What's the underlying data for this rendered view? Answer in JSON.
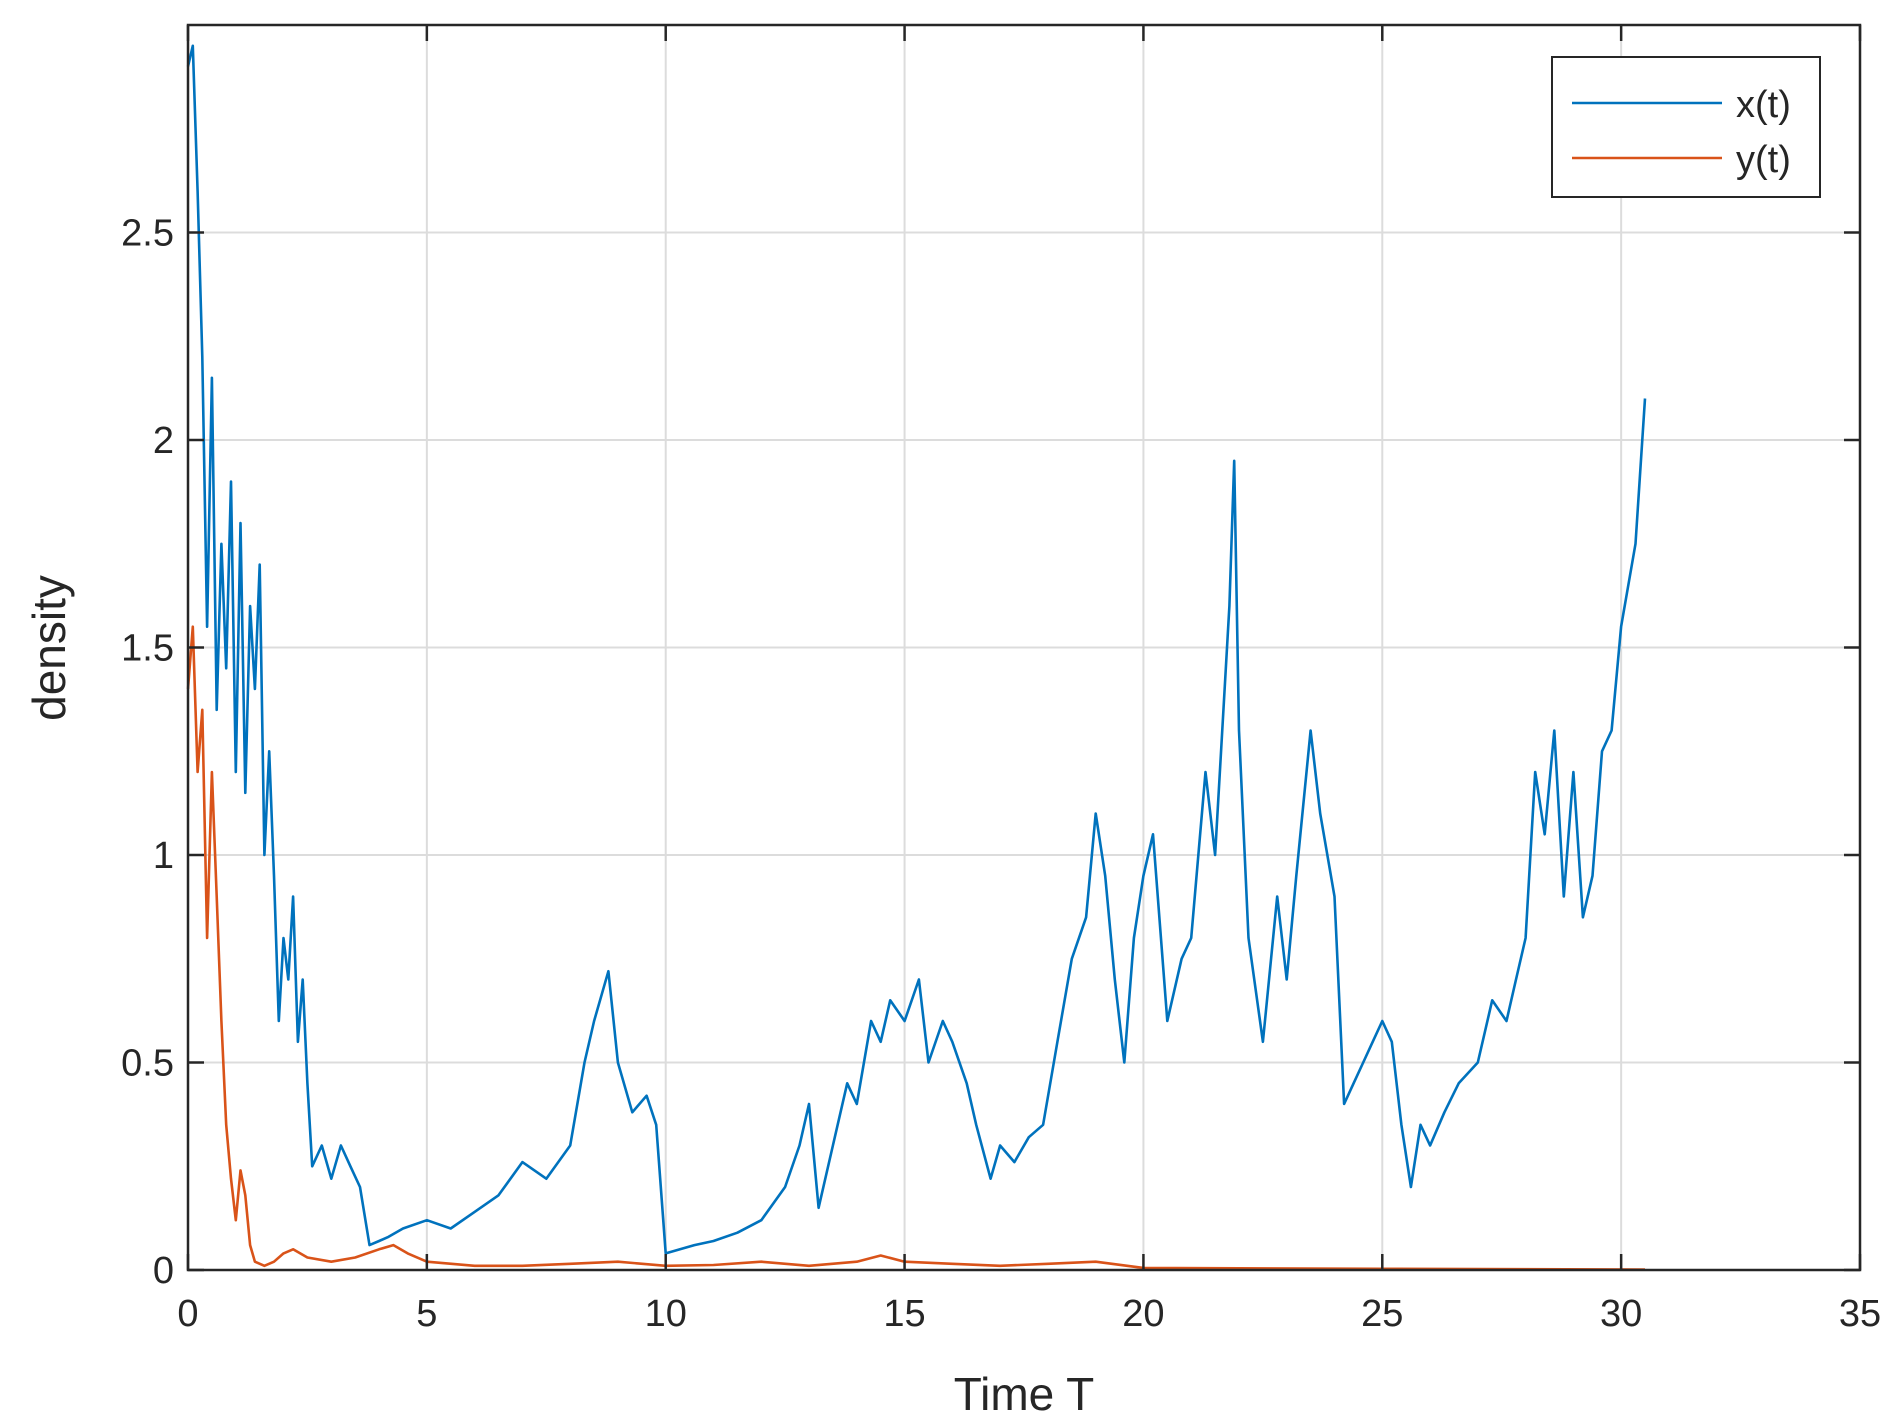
{
  "chart_data": {
    "type": "line",
    "title": "",
    "xlabel": "Time T",
    "ylabel": "density",
    "xlim": [
      0,
      35
    ],
    "ylim": [
      0,
      3
    ],
    "xticks": [
      0,
      5,
      10,
      15,
      20,
      25,
      30,
      35
    ],
    "yticks": [
      0,
      0.5,
      1,
      1.5,
      2,
      2.5
    ],
    "xtick_labels": [
      "0",
      "5",
      "10",
      "15",
      "20",
      "25",
      "30",
      "35"
    ],
    "ytick_labels": [
      "0",
      "0.5",
      "1",
      "1.5",
      "2",
      "2.5"
    ],
    "grid": true,
    "legend_position": "top-right",
    "series": [
      {
        "name": "x(t)",
        "color": "#0072bd",
        "x": [
          0,
          0.1,
          0.2,
          0.3,
          0.4,
          0.5,
          0.6,
          0.7,
          0.8,
          0.9,
          1.0,
          1.1,
          1.2,
          1.3,
          1.4,
          1.5,
          1.6,
          1.7,
          1.8,
          1.9,
          2.0,
          2.1,
          2.2,
          2.3,
          2.4,
          2.5,
          2.6,
          2.8,
          3.0,
          3.2,
          3.4,
          3.6,
          3.8,
          4.0,
          4.2,
          4.5,
          5.0,
          5.5,
          6.0,
          6.5,
          7.0,
          7.5,
          8.0,
          8.3,
          8.5,
          8.8,
          9.0,
          9.3,
          9.6,
          9.8,
          10.0,
          10.3,
          10.6,
          11.0,
          11.5,
          12.0,
          12.5,
          12.8,
          13.0,
          13.2,
          13.5,
          13.8,
          14.0,
          14.3,
          14.5,
          14.7,
          15.0,
          15.3,
          15.5,
          15.8,
          16.0,
          16.3,
          16.5,
          16.8,
          17.0,
          17.3,
          17.6,
          17.9,
          18.2,
          18.5,
          18.8,
          19.0,
          19.2,
          19.4,
          19.6,
          19.8,
          20.0,
          20.2,
          20.5,
          20.8,
          21.0,
          21.3,
          21.5,
          21.8,
          21.9,
          22.0,
          22.2,
          22.5,
          22.8,
          23.0,
          23.2,
          23.5,
          23.7,
          24.0,
          24.2,
          24.4,
          24.6,
          24.8,
          25.0,
          25.2,
          25.4,
          25.6,
          25.8,
          26.0,
          26.3,
          26.6,
          27.0,
          27.3,
          27.6,
          27.8,
          28.0,
          28.2,
          28.4,
          28.6,
          28.8,
          29.0,
          29.2,
          29.4,
          29.6,
          29.8,
          30.0,
          30.3,
          30.5
        ],
        "values": [
          2.9,
          2.95,
          2.6,
          2.2,
          1.55,
          2.15,
          1.35,
          1.75,
          1.45,
          1.9,
          1.2,
          1.8,
          1.15,
          1.6,
          1.4,
          1.7,
          1.0,
          1.25,
          0.95,
          0.6,
          0.8,
          0.7,
          0.9,
          0.55,
          0.7,
          0.45,
          0.25,
          0.3,
          0.22,
          0.3,
          0.25,
          0.2,
          0.06,
          0.07,
          0.08,
          0.1,
          0.12,
          0.1,
          0.14,
          0.18,
          0.26,
          0.22,
          0.3,
          0.5,
          0.6,
          0.72,
          0.5,
          0.38,
          0.42,
          0.35,
          0.04,
          0.05,
          0.06,
          0.07,
          0.09,
          0.12,
          0.2,
          0.3,
          0.4,
          0.15,
          0.3,
          0.45,
          0.4,
          0.6,
          0.55,
          0.65,
          0.6,
          0.7,
          0.5,
          0.6,
          0.55,
          0.45,
          0.35,
          0.22,
          0.3,
          0.26,
          0.32,
          0.35,
          0.55,
          0.75,
          0.85,
          1.1,
          0.95,
          0.7,
          0.5,
          0.8,
          0.95,
          1.05,
          0.6,
          0.75,
          0.8,
          1.2,
          1.0,
          1.6,
          1.95,
          1.3,
          0.8,
          0.55,
          0.9,
          0.7,
          0.95,
          1.3,
          1.1,
          0.9,
          0.4,
          0.45,
          0.5,
          0.55,
          0.6,
          0.55,
          0.35,
          0.2,
          0.35,
          0.3,
          0.38,
          0.45,
          0.5,
          0.65,
          0.6,
          0.7,
          0.8,
          1.2,
          1.05,
          1.3,
          0.9,
          1.2,
          0.85,
          0.95,
          1.25,
          1.3,
          1.55,
          1.75,
          2.1
        ]
      },
      {
        "name": "y(t)",
        "color": "#d95319",
        "x": [
          0,
          0.1,
          0.2,
          0.3,
          0.4,
          0.5,
          0.6,
          0.7,
          0.8,
          0.9,
          1.0,
          1.1,
          1.2,
          1.3,
          1.4,
          1.6,
          1.8,
          2.0,
          2.2,
          2.5,
          3.0,
          3.5,
          4.0,
          4.3,
          4.6,
          5.0,
          6.0,
          7.0,
          8.0,
          9.0,
          10.0,
          11.0,
          12.0,
          13.0,
          14.0,
          14.5,
          15.0,
          16.0,
          17.0,
          18.0,
          19.0,
          20.0,
          22.0,
          25.0,
          28.0,
          30.5
        ],
        "values": [
          1.4,
          1.55,
          1.2,
          1.35,
          0.8,
          1.2,
          0.9,
          0.6,
          0.35,
          0.22,
          0.12,
          0.24,
          0.18,
          0.06,
          0.02,
          0.01,
          0.02,
          0.04,
          0.05,
          0.03,
          0.02,
          0.03,
          0.05,
          0.06,
          0.04,
          0.02,
          0.01,
          0.01,
          0.015,
          0.02,
          0.01,
          0.012,
          0.02,
          0.01,
          0.02,
          0.035,
          0.02,
          0.015,
          0.01,
          0.015,
          0.02,
          0.005,
          0.004,
          0.003,
          0.002,
          0.001
        ]
      }
    ]
  }
}
